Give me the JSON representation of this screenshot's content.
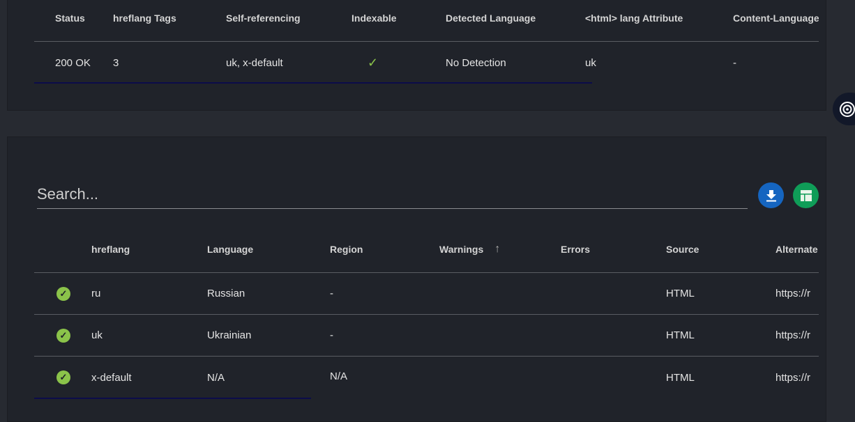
{
  "summary_table": {
    "headers": [
      "Status",
      "hreflang Tags",
      "Self-referencing",
      "Indexable",
      "Detected Language",
      "<html> lang Attribute",
      "Content-Language"
    ],
    "row": {
      "status": "200 OK",
      "hreflang_tags": "3",
      "self_referencing": "uk, x-default",
      "indexable": true,
      "detected_language": "No Detection",
      "html_lang": "uk",
      "content_language": "-"
    }
  },
  "search": {
    "placeholder": "Search..."
  },
  "buttons": {
    "download": "download-icon",
    "sheets": "google-sheets-icon"
  },
  "colors": {
    "download": "#1565c0",
    "sheets": "#0f9d58",
    "ok": "#8bc34a"
  },
  "hreflang_table": {
    "headers": [
      "hreflang",
      "Language",
      "Region",
      "Warnings",
      "Errors",
      "Source",
      "Alternate"
    ],
    "sort": {
      "column": "Warnings",
      "direction": "ascending"
    },
    "rows": [
      {
        "hreflang": "ru",
        "language": "Russian",
        "region": "-",
        "warnings": "",
        "errors": "",
        "source": "HTML",
        "alternate": "https://r"
      },
      {
        "hreflang": "uk",
        "language": "Ukrainian",
        "region": "-",
        "warnings": "",
        "errors": "",
        "source": "HTML",
        "alternate": "https://r"
      },
      {
        "hreflang": "x-default",
        "language": "N/A",
        "region": "N/A",
        "warnings": "",
        "errors": "",
        "source": "HTML",
        "alternate": "https://r"
      }
    ]
  }
}
